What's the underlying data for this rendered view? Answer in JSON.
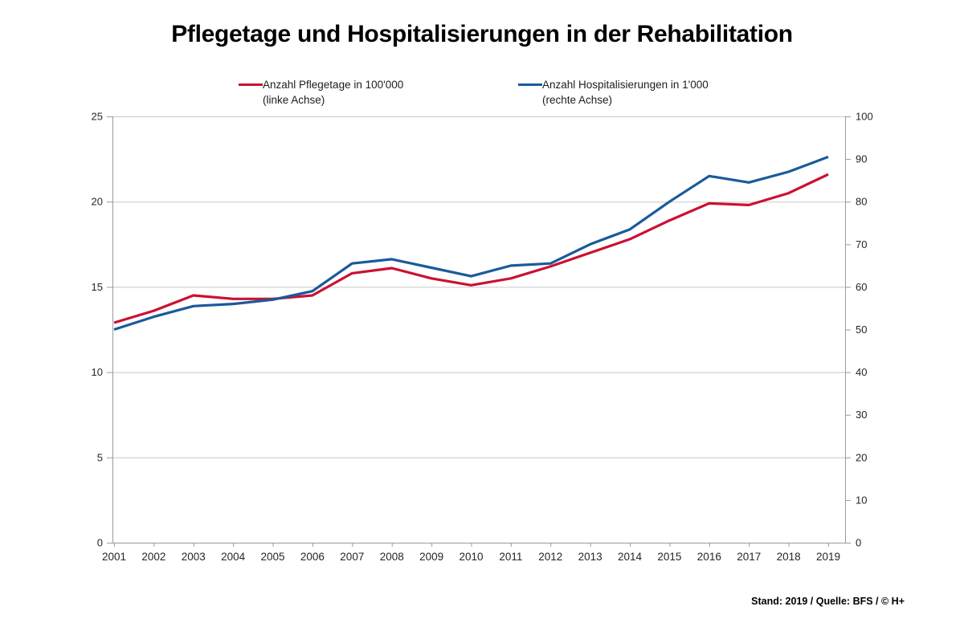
{
  "title": "Pflegetage und Hospitalisierungen in der Rehabilitation",
  "legend": {
    "items": [
      {
        "label": "Anzahl Pflegetage in 100'000",
        "sub": "(linke Achse)",
        "color": "#CB1033"
      },
      {
        "label": "Anzahl Hospitalisierungen in 1'000",
        "sub": "(rechte Achse)",
        "color": "#1A5A9A"
      }
    ]
  },
  "footer": {
    "text": "Stand: 2019 / Quelle: BFS / © H+"
  },
  "chart_data": {
    "type": "line",
    "title": "Pflegetage und Hospitalisierungen in der Rehabilitation",
    "categories": [
      2001,
      2002,
      2003,
      2004,
      2005,
      2006,
      2007,
      2008,
      2009,
      2010,
      2011,
      2012,
      2013,
      2014,
      2015,
      2016,
      2017,
      2018,
      2019
    ],
    "series": [
      {
        "name": "Anzahl Pflegetage in 100'000 (linke Achse)",
        "axis": "left",
        "color": "#CB1033",
        "values": [
          12.9,
          13.6,
          14.5,
          14.3,
          14.3,
          14.5,
          15.8,
          16.1,
          15.5,
          15.1,
          15.5,
          16.2,
          17.0,
          17.8,
          18.9,
          19.9,
          19.8,
          20.5,
          21.6
        ]
      },
      {
        "name": "Anzahl Hospitalisierungen in 1'000 (rechte Achse)",
        "axis": "right",
        "color": "#1A5A9A",
        "values": [
          50,
          53,
          55.5,
          56,
          57,
          59,
          65.5,
          66.5,
          64.5,
          62.5,
          65,
          65.5,
          70,
          73.5,
          80,
          86,
          84.5,
          87,
          90.5
        ]
      }
    ],
    "left_axis": {
      "min": 0,
      "max": 25,
      "tick_step": 5,
      "ticks": [
        0,
        5,
        10,
        15,
        20,
        25
      ]
    },
    "right_axis": {
      "min": 0,
      "max": 100,
      "tick_step": 10,
      "ticks": [
        0,
        10,
        20,
        30,
        40,
        50,
        60,
        70,
        80,
        90,
        100
      ]
    },
    "grid": "horizontal gridlines at left-axis multiples of 5",
    "legend_position": "top",
    "colors": {
      "grid": "#C8C8C8",
      "axis": "#9A9A9A",
      "tick_label": "#262626"
    }
  }
}
